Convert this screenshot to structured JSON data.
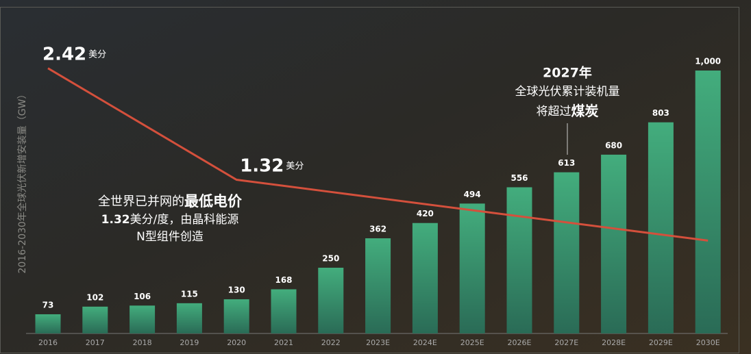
{
  "chart_data": {
    "type": "bar",
    "y_axis_label": "2016-2030年全球光伏新增安装量（GW）",
    "categories": [
      "2016",
      "2017",
      "2018",
      "2019",
      "2020",
      "2021",
      "2022",
      "2023E",
      "2024E",
      "2025E",
      "2026E",
      "2027E",
      "2028E",
      "2029E",
      "2030E"
    ],
    "values": [
      73,
      102,
      106,
      115,
      130,
      168,
      250,
      362,
      420,
      494,
      556,
      613,
      680,
      803,
      1000
    ],
    "value_labels": [
      "73",
      "102",
      "106",
      "115",
      "130",
      "168",
      "250",
      "362",
      "420",
      "494",
      "556",
      "613",
      "680",
      "803",
      "1,000"
    ],
    "color": "#3fa878",
    "ylim": [
      0,
      1000
    ],
    "line": {
      "axis": "y2",
      "color": "#d4503c",
      "values": [
        2.42,
        2.145,
        1.87,
        1.595,
        1.32,
        1.26,
        1.2,
        1.14,
        1.08,
        1.02,
        0.96,
        0.9,
        0.84,
        0.78,
        0.72
      ],
      "value_labels": [
        "2.42",
        null,
        null,
        null,
        "1.32",
        null,
        null,
        null,
        null,
        null,
        null,
        null,
        null,
        null,
        null
      ],
      "unit": "美分"
    },
    "y2lim": [
      0,
      2.6
    ],
    "annotation_2027": {
      "title": "2027年",
      "line1": "全球光伏累计装机量",
      "line2_text": "将超过",
      "line2_bold": "煤炭"
    },
    "annotation_price": {
      "line1_text": "全世界已并网的",
      "line1_bold": "最低电价",
      "line2_bold": "1.32",
      "line2_text": "美分/度，由晶科能源",
      "line3": "N型组件创造"
    }
  }
}
